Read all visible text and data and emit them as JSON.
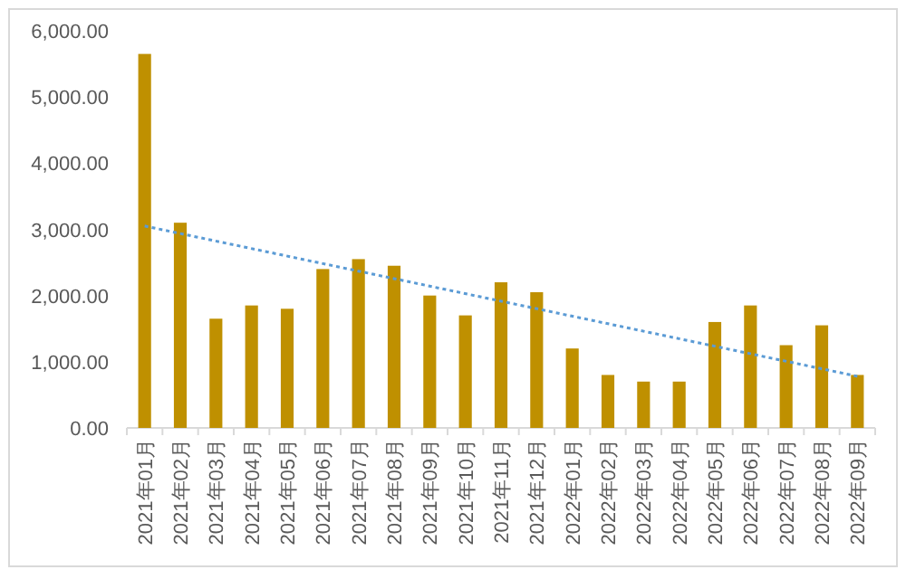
{
  "chart_data": {
    "type": "bar",
    "categories": [
      "2021年01月",
      "2021年02月",
      "2021年03月",
      "2021年04月",
      "2021年05月",
      "2021年06月",
      "2021年07月",
      "2021年08月",
      "2021年09月",
      "2021年10月",
      "2021年11月",
      "2021年12月",
      "2022年01月",
      "2022年02月",
      "2022年03月",
      "2022年04月",
      "2022年05月",
      "2022年06月",
      "2022年07月",
      "2022年08月",
      "2022年09月"
    ],
    "series": [
      {
        "color": "#bf9000",
        "values": [
          5650,
          3100,
          1650,
          1850,
          1800,
          2400,
          2550,
          2450,
          2000,
          1700,
          2200,
          2050,
          1200,
          800,
          700,
          700,
          1600,
          1850,
          1250,
          1550,
          800
        ]
      },
      {
        "type": "line",
        "color": "#5b9bd5",
        "line_style": "dotted",
        "x": [
          "2021年01月",
          "2022年09月"
        ],
        "values": [
          3050,
          780
        ]
      }
    ],
    "ylim": [
      0,
      6000
    ],
    "yticks": [
      {
        "value": 0,
        "label": "0.00"
      },
      {
        "value": 1000,
        "label": "1,000.00"
      },
      {
        "value": 2000,
        "label": "2,000.00"
      },
      {
        "value": 3000,
        "label": "3,000.00"
      },
      {
        "value": 4000,
        "label": "4,000.00"
      },
      {
        "value": 5000,
        "label": "5,000.00"
      },
      {
        "value": 6000,
        "label": "6,000.00"
      }
    ],
    "grid": false
  }
}
